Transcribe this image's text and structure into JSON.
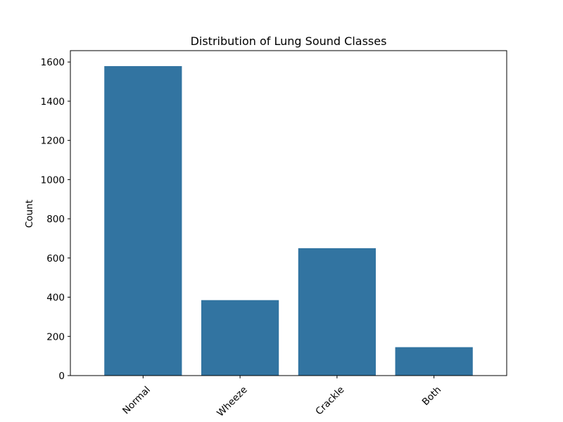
{
  "chart_data": {
    "type": "bar",
    "title": "Distribution of Lung Sound Classes",
    "xlabel": "",
    "ylabel": "Count",
    "categories": [
      "Normal",
      "Wheeze",
      "Crackle",
      "Both"
    ],
    "values": [
      1579,
      385,
      650,
      145
    ],
    "ylim": [
      0,
      1658
    ],
    "yticks": [
      0,
      200,
      400,
      600,
      800,
      1000,
      1200,
      1400,
      1600
    ],
    "ytick_labels": [
      "0",
      "200",
      "400",
      "600",
      "800",
      "1000",
      "1200",
      "1400",
      "1600"
    ],
    "grid": false,
    "legend": "none",
    "bar_color": "#3274a1",
    "xtick_rotation_deg": 45
  }
}
